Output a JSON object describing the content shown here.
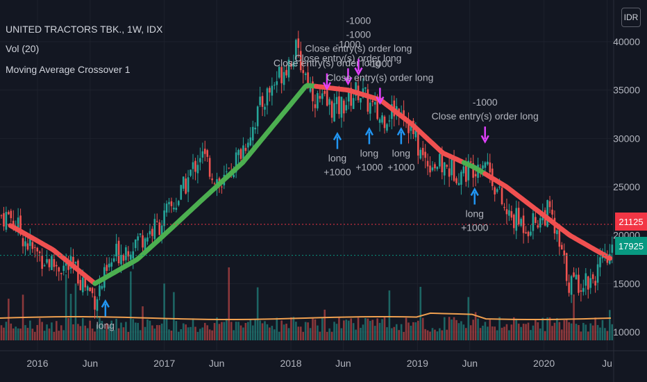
{
  "legend": {
    "symbol": "UNITED TRACTORS TBK., 1W, IDX",
    "volume": "Vol (20)",
    "strategy": "Moving Average Crossover 1"
  },
  "currency_badge": "IDR",
  "last_price_tags": {
    "red": "21125",
    "teal": "17925"
  },
  "colors": {
    "background": "#131722",
    "up_candle": "#26a69a",
    "down_candle": "#ef5350",
    "ma_up": "#4caf50",
    "ma_down": "#f05050",
    "vol_ma": "#f0a050",
    "long_arrow": "#2196f3",
    "close_arrow": "#e040fb",
    "text": "#b2b5be"
  },
  "chart_data": {
    "type": "candlestick",
    "y_axis": {
      "range": [
        10000,
        40000
      ],
      "ticks": [
        10000,
        15000,
        20000,
        25000,
        30000,
        35000,
        40000
      ]
    },
    "x_axis": {
      "ticks": [
        "2016",
        "Jun",
        "2017",
        "Jun",
        "2018",
        "Jun",
        "2019",
        "Jun",
        "2020",
        "Ju"
      ]
    },
    "price_path": [
      {
        "t": "2015-10",
        "v": 22000
      },
      {
        "t": "2015-12",
        "v": 18500
      },
      {
        "t": "2016-02",
        "v": 17000
      },
      {
        "t": "2016-04",
        "v": 16500
      },
      {
        "t": "2016-06",
        "v": 13500
      },
      {
        "t": "2016-08",
        "v": 18000
      },
      {
        "t": "2016-10",
        "v": 19500
      },
      {
        "t": "2016-12",
        "v": 21000
      },
      {
        "t": "2017-02",
        "v": 24000
      },
      {
        "t": "2017-04",
        "v": 28500
      },
      {
        "t": "2017-06",
        "v": 25000
      },
      {
        "t": "2017-08",
        "v": 29000
      },
      {
        "t": "2017-10",
        "v": 34000
      },
      {
        "t": "2017-12",
        "v": 37500
      },
      {
        "t": "2018-01",
        "v": 39000
      },
      {
        "t": "2018-03",
        "v": 34000
      },
      {
        "t": "2018-05",
        "v": 33000
      },
      {
        "t": "2018-07",
        "v": 35000
      },
      {
        "t": "2018-09",
        "v": 32000
      },
      {
        "t": "2018-11",
        "v": 33500
      },
      {
        "t": "2019-01",
        "v": 28000
      },
      {
        "t": "2019-03",
        "v": 27000
      },
      {
        "t": "2019-05",
        "v": 26500
      },
      {
        "t": "2019-07",
        "v": 28000
      },
      {
        "t": "2019-09",
        "v": 22000
      },
      {
        "t": "2019-11",
        "v": 21000
      },
      {
        "t": "2020-01",
        "v": 22500
      },
      {
        "t": "2020-03",
        "v": 15000
      },
      {
        "t": "2020-05",
        "v": 15500
      },
      {
        "t": "2020-07",
        "v": 17925
      }
    ],
    "moving_average": [
      {
        "t": "2015-10",
        "v": 21000
      },
      {
        "t": "2016-02",
        "v": 18500
      },
      {
        "t": "2016-06",
        "v": 15000
      },
      {
        "t": "2016-10",
        "v": 17500
      },
      {
        "t": "2017-01",
        "v": 20500
      },
      {
        "t": "2017-04",
        "v": 23500
      },
      {
        "t": "2017-08",
        "v": 27500
      },
      {
        "t": "2017-11",
        "v": 31500
      },
      {
        "t": "2018-02",
        "v": 35500
      },
      {
        "t": "2018-06",
        "v": 35000
      },
      {
        "t": "2018-09",
        "v": 34000
      },
      {
        "t": "2018-12",
        "v": 31500
      },
      {
        "t": "2019-03",
        "v": 28500
      },
      {
        "t": "2019-06",
        "v": 27000
      },
      {
        "t": "2019-09",
        "v": 25000
      },
      {
        "t": "2019-12",
        "v": 22500
      },
      {
        "t": "2020-03",
        "v": 20000
      },
      {
        "t": "2020-07",
        "v": 17500
      }
    ],
    "ma_trend_segments": [
      {
        "from": "2015-10",
        "to": "2016-06",
        "direction": "down"
      },
      {
        "from": "2016-06",
        "to": "2018-03",
        "direction": "up"
      },
      {
        "from": "2018-03",
        "to": "2019-05",
        "direction": "down"
      },
      {
        "from": "2019-05",
        "to": "2019-07",
        "direction": "up"
      },
      {
        "from": "2019-07",
        "to": "2020-07",
        "direction": "down"
      }
    ],
    "reference_lines": [
      21125,
      17925
    ],
    "signals": [
      {
        "t": "2016-07",
        "type": "long",
        "lines": [
          "long"
        ]
      },
      {
        "t": "2018-04",
        "type": "close",
        "lines": [
          "Close entry(s) order long"
        ]
      },
      {
        "t": "2018-05",
        "type": "long",
        "lines": [
          "long",
          "+1000"
        ]
      },
      {
        "t": "2018-06",
        "type": "close",
        "lines": [
          "-1000",
          "Close entry(s) order long"
        ]
      },
      {
        "t": "2018-07",
        "type": "close",
        "lines": [
          "-1000",
          "-1000",
          "Close entry(s) order long"
        ]
      },
      {
        "t": "2018-08",
        "type": "long",
        "lines": [
          "long",
          "+1000"
        ]
      },
      {
        "t": "2018-09",
        "type": "close",
        "lines": [
          "-1000",
          "Close entry(s) order long"
        ]
      },
      {
        "t": "2018-11",
        "type": "long",
        "lines": [
          "long",
          "+1000"
        ]
      },
      {
        "t": "2019-06",
        "type": "long",
        "lines": [
          "long",
          "+1000"
        ]
      },
      {
        "t": "2019-07",
        "type": "close",
        "lines": [
          "-1000",
          "Close entry(s) order long"
        ]
      }
    ]
  }
}
